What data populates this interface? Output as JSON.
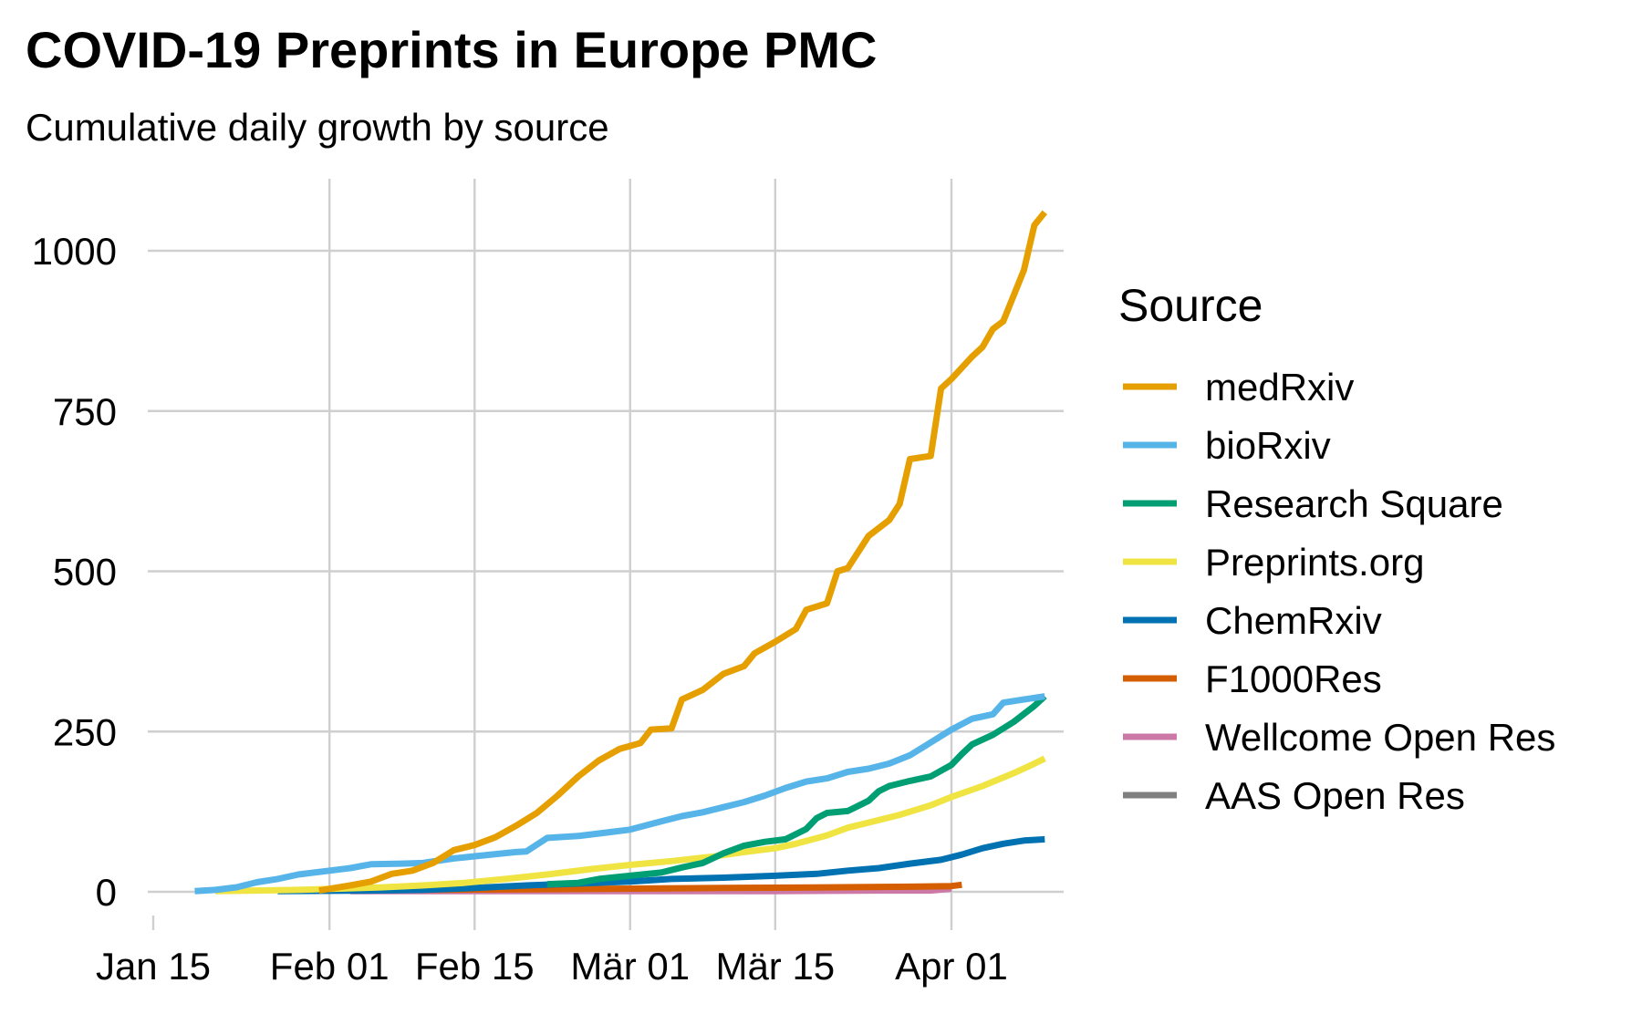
{
  "chart_data": {
    "type": "line",
    "title": "COVID-19 Preprints in Europe PMC",
    "subtitle": "Cumulative daily growth by source",
    "xlabel": "",
    "ylabel": "",
    "x_ticks": [
      {
        "date": "2020-01-15",
        "label": "Jan 15"
      },
      {
        "date": "2020-02-01",
        "label": "Feb 01"
      },
      {
        "date": "2020-02-15",
        "label": "Feb 15"
      },
      {
        "date": "2020-03-01",
        "label": "Mär 01"
      },
      {
        "date": "2020-03-15",
        "label": "Mär 15"
      },
      {
        "date": "2020-04-01",
        "label": "Apr 01"
      }
    ],
    "y_ticks": [
      0,
      250,
      500,
      750,
      1000
    ],
    "xlim": [
      "2020-01-15",
      "2020-04-12"
    ],
    "ylim": [
      -60,
      1110
    ],
    "grid": true,
    "legend": {
      "title": "Source",
      "position": "right"
    },
    "series": [
      {
        "name": "medRxiv",
        "color": "#E69F00",
        "points": [
          [
            "2020-01-31",
            2
          ],
          [
            "2020-02-03",
            10
          ],
          [
            "2020-02-05",
            16
          ],
          [
            "2020-02-07",
            28
          ],
          [
            "2020-02-09",
            33
          ],
          [
            "2020-02-11",
            45
          ],
          [
            "2020-02-13",
            65
          ],
          [
            "2020-02-15",
            73
          ],
          [
            "2020-02-17",
            85
          ],
          [
            "2020-02-19",
            103
          ],
          [
            "2020-02-21",
            123
          ],
          [
            "2020-02-23",
            150
          ],
          [
            "2020-02-25",
            180
          ],
          [
            "2020-02-27",
            205
          ],
          [
            "2020-02-29",
            223
          ],
          [
            "2020-03-02",
            232
          ],
          [
            "2020-03-03",
            253
          ],
          [
            "2020-03-05",
            255
          ],
          [
            "2020-03-06",
            300
          ],
          [
            "2020-03-08",
            315
          ],
          [
            "2020-03-10",
            340
          ],
          [
            "2020-03-12",
            352
          ],
          [
            "2020-03-13",
            372
          ],
          [
            "2020-03-15",
            390
          ],
          [
            "2020-03-17",
            410
          ],
          [
            "2020-03-18",
            440
          ],
          [
            "2020-03-20",
            450
          ],
          [
            "2020-03-21",
            500
          ],
          [
            "2020-03-22",
            505
          ],
          [
            "2020-03-24",
            555
          ],
          [
            "2020-03-26",
            580
          ],
          [
            "2020-03-27",
            605
          ],
          [
            "2020-03-28",
            675
          ],
          [
            "2020-03-30",
            680
          ],
          [
            "2020-03-31",
            785
          ],
          [
            "2020-04-01",
            800
          ],
          [
            "2020-04-03",
            835
          ],
          [
            "2020-04-04",
            850
          ],
          [
            "2020-04-05",
            878
          ],
          [
            "2020-04-06",
            890
          ],
          [
            "2020-04-08",
            970
          ],
          [
            "2020-04-09",
            1040
          ],
          [
            "2020-04-10",
            1060
          ]
        ]
      },
      {
        "name": "bioRxiv",
        "color": "#56B4E9",
        "points": [
          [
            "2020-01-19",
            1
          ],
          [
            "2020-01-21",
            3
          ],
          [
            "2020-01-23",
            7
          ],
          [
            "2020-01-25",
            15
          ],
          [
            "2020-01-27",
            20
          ],
          [
            "2020-01-29",
            27
          ],
          [
            "2020-02-01",
            33
          ],
          [
            "2020-02-03",
            37
          ],
          [
            "2020-02-05",
            43
          ],
          [
            "2020-02-08",
            44
          ],
          [
            "2020-02-10",
            45
          ],
          [
            "2020-02-13",
            52
          ],
          [
            "2020-02-16",
            57
          ],
          [
            "2020-02-19",
            62
          ],
          [
            "2020-02-20",
            63
          ],
          [
            "2020-02-22",
            84
          ],
          [
            "2020-02-25",
            87
          ],
          [
            "2020-02-28",
            93
          ],
          [
            "2020-03-01",
            97
          ],
          [
            "2020-03-04",
            110
          ],
          [
            "2020-03-06",
            118
          ],
          [
            "2020-03-08",
            124
          ],
          [
            "2020-03-10",
            132
          ],
          [
            "2020-03-12",
            140
          ],
          [
            "2020-03-14",
            150
          ],
          [
            "2020-03-16",
            162
          ],
          [
            "2020-03-18",
            172
          ],
          [
            "2020-03-20",
            177
          ],
          [
            "2020-03-22",
            187
          ],
          [
            "2020-03-24",
            192
          ],
          [
            "2020-03-26",
            200
          ],
          [
            "2020-03-28",
            213
          ],
          [
            "2020-03-30",
            233
          ],
          [
            "2020-04-01",
            253
          ],
          [
            "2020-04-03",
            270
          ],
          [
            "2020-04-05",
            277
          ],
          [
            "2020-04-06",
            295
          ],
          [
            "2020-04-08",
            300
          ],
          [
            "2020-04-10",
            305
          ]
        ]
      },
      {
        "name": "Research Square",
        "color": "#009E73",
        "points": [
          [
            "2020-02-22",
            12
          ],
          [
            "2020-02-25",
            14
          ],
          [
            "2020-02-27",
            20
          ],
          [
            "2020-03-01",
            25
          ],
          [
            "2020-03-04",
            30
          ],
          [
            "2020-03-06",
            38
          ],
          [
            "2020-03-08",
            45
          ],
          [
            "2020-03-10",
            60
          ],
          [
            "2020-03-12",
            72
          ],
          [
            "2020-03-14",
            78
          ],
          [
            "2020-03-16",
            82
          ],
          [
            "2020-03-18",
            98
          ],
          [
            "2020-03-19",
            115
          ],
          [
            "2020-03-20",
            123
          ],
          [
            "2020-03-22",
            126
          ],
          [
            "2020-03-24",
            142
          ],
          [
            "2020-03-25",
            157
          ],
          [
            "2020-03-26",
            165
          ],
          [
            "2020-03-28",
            173
          ],
          [
            "2020-03-30",
            180
          ],
          [
            "2020-04-01",
            198
          ],
          [
            "2020-04-02",
            215
          ],
          [
            "2020-04-03",
            230
          ],
          [
            "2020-04-05",
            245
          ],
          [
            "2020-04-07",
            265
          ],
          [
            "2020-04-09",
            290
          ],
          [
            "2020-04-10",
            305
          ]
        ]
      },
      {
        "name": "Preprints.org",
        "color": "#F0E442",
        "points": [
          [
            "2020-01-21",
            1
          ],
          [
            "2020-01-25",
            2
          ],
          [
            "2020-01-29",
            3
          ],
          [
            "2020-02-02",
            5
          ],
          [
            "2020-02-06",
            7
          ],
          [
            "2020-02-10",
            10
          ],
          [
            "2020-02-14",
            14
          ],
          [
            "2020-02-18",
            20
          ],
          [
            "2020-02-22",
            27
          ],
          [
            "2020-02-26",
            35
          ],
          [
            "2020-03-01",
            42
          ],
          [
            "2020-03-05",
            48
          ],
          [
            "2020-03-09",
            55
          ],
          [
            "2020-03-12",
            62
          ],
          [
            "2020-03-15",
            68
          ],
          [
            "2020-03-17",
            75
          ],
          [
            "2020-03-20",
            88
          ],
          [
            "2020-03-22",
            100
          ],
          [
            "2020-03-24",
            108
          ],
          [
            "2020-03-27",
            120
          ],
          [
            "2020-03-30",
            135
          ],
          [
            "2020-04-01",
            148
          ],
          [
            "2020-04-04",
            165
          ],
          [
            "2020-04-07",
            185
          ],
          [
            "2020-04-09",
            200
          ],
          [
            "2020-04-10",
            208
          ]
        ]
      },
      {
        "name": "ChemRxiv",
        "color": "#0072B2",
        "points": [
          [
            "2020-01-27",
            1
          ],
          [
            "2020-02-05",
            2
          ],
          [
            "2020-02-10",
            3
          ],
          [
            "2020-02-15",
            6
          ],
          [
            "2020-02-20",
            10
          ],
          [
            "2020-02-25",
            13
          ],
          [
            "2020-03-01",
            16
          ],
          [
            "2020-03-05",
            20
          ],
          [
            "2020-03-10",
            22
          ],
          [
            "2020-03-15",
            25
          ],
          [
            "2020-03-19",
            28
          ],
          [
            "2020-03-22",
            33
          ],
          [
            "2020-03-25",
            37
          ],
          [
            "2020-03-28",
            44
          ],
          [
            "2020-03-31",
            50
          ],
          [
            "2020-04-02",
            58
          ],
          [
            "2020-04-04",
            68
          ],
          [
            "2020-04-06",
            75
          ],
          [
            "2020-04-08",
            80
          ],
          [
            "2020-04-10",
            82
          ]
        ]
      },
      {
        "name": "F1000Res",
        "color": "#D55E00",
        "points": [
          [
            "2020-01-31",
            2
          ],
          [
            "2020-02-10",
            3
          ],
          [
            "2020-02-20",
            4
          ],
          [
            "2020-03-01",
            5
          ],
          [
            "2020-03-10",
            6
          ],
          [
            "2020-03-20",
            7
          ],
          [
            "2020-03-28",
            8
          ],
          [
            "2020-04-01",
            9
          ],
          [
            "2020-04-02",
            11
          ]
        ]
      },
      {
        "name": "Wellcome Open Res",
        "color": "#CC79A7",
        "points": [
          [
            "2020-02-03",
            1
          ],
          [
            "2020-02-15",
            1
          ],
          [
            "2020-03-01",
            1
          ],
          [
            "2020-03-15",
            1
          ],
          [
            "2020-03-25",
            2
          ],
          [
            "2020-03-30",
            2
          ],
          [
            "2020-04-01",
            5
          ]
        ]
      },
      {
        "name": "AAS Open Res",
        "color": "#808080",
        "points": []
      }
    ]
  }
}
